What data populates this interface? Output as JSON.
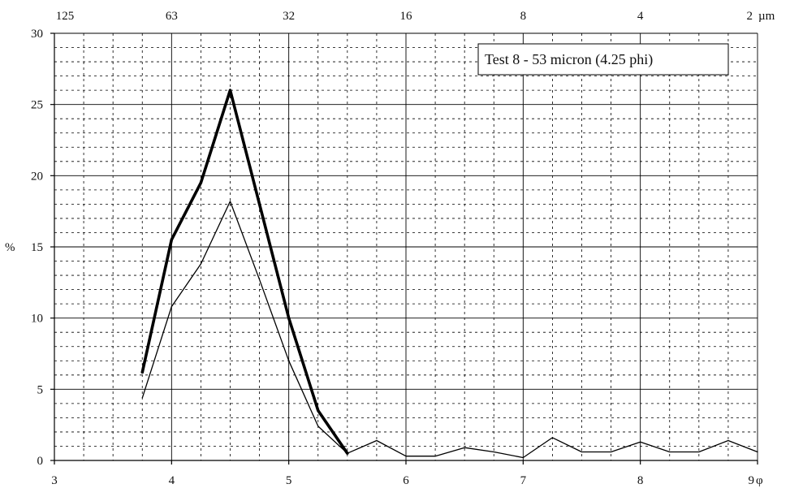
{
  "chart_data": {
    "type": "line",
    "annotation": "Test 8 - 53 micron (4.25 phi)",
    "ylabel": "%",
    "xlabel_symbol": "φ",
    "top_axis_unit": "µm",
    "x_range": [
      3,
      9
    ],
    "ylim": [
      0,
      30
    ],
    "y_ticks": [
      0,
      5,
      10,
      15,
      20,
      25,
      30
    ],
    "x_ticks": [
      3,
      4,
      5,
      6,
      7,
      8,
      9
    ],
    "top_ticks": [
      {
        "phi": 3,
        "label": "125"
      },
      {
        "phi": 4,
        "label": "63"
      },
      {
        "phi": 5,
        "label": "32"
      },
      {
        "phi": 6,
        "label": "16"
      },
      {
        "phi": 7,
        "label": "8"
      },
      {
        "phi": 8,
        "label": "4"
      },
      {
        "phi": 9,
        "label": "2"
      }
    ],
    "grid": true,
    "series": [
      {
        "line": "thick",
        "x": [
          3.75,
          4.0,
          4.25,
          4.5,
          4.75,
          5.0,
          5.25,
          5.5
        ],
        "y": [
          6.2,
          15.5,
          19.5,
          26.0,
          18.0,
          10.0,
          3.5,
          0.5
        ]
      },
      {
        "line": "thin",
        "x": [
          3.75,
          4.0,
          4.25,
          4.5,
          4.75,
          5.0,
          5.25,
          5.5,
          5.75,
          6.0,
          6.25,
          6.5,
          6.75,
          7.0,
          7.25,
          7.5,
          7.75,
          8.0,
          8.25,
          8.5,
          8.75,
          9.0
        ],
        "y": [
          4.4,
          10.8,
          13.8,
          18.2,
          12.7,
          7.0,
          2.4,
          0.5,
          1.4,
          0.3,
          0.3,
          0.9,
          0.6,
          0.2,
          1.6,
          0.6,
          0.6,
          1.3,
          0.6,
          0.6,
          1.4,
          0.6
        ]
      }
    ]
  }
}
